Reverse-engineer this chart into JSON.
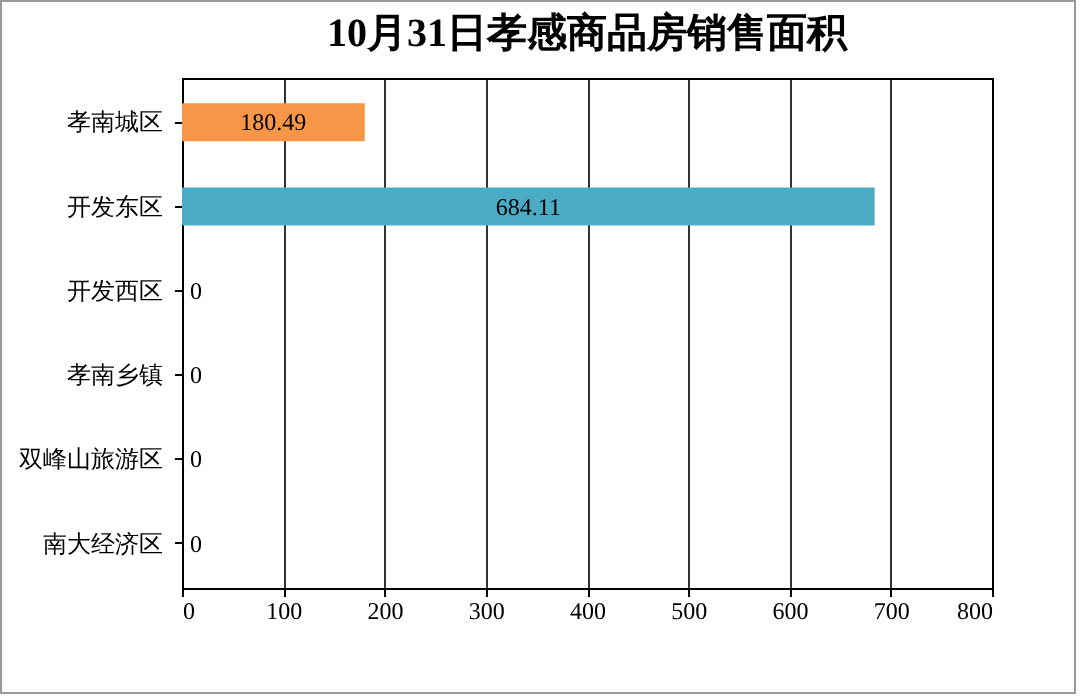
{
  "chart_data": {
    "type": "bar",
    "orientation": "horizontal",
    "title": "10月31日孝感商品房销售面积",
    "categories": [
      "孝南城区",
      "开发东区",
      "开发西区",
      "孝南乡镇",
      "双峰山旅游区",
      "南大经济区"
    ],
    "values": [
      180.49,
      684.11,
      0,
      0,
      0,
      0
    ],
    "colors": [
      "#f79646",
      "#4bacc6",
      "#4bacc6",
      "#4bacc6",
      "#4bacc6",
      "#4bacc6"
    ],
    "xlim": [
      0,
      800
    ],
    "xticks": [
      0,
      100,
      200,
      300,
      400,
      500,
      600,
      700,
      800
    ],
    "grid": "x",
    "data_labels": true
  }
}
